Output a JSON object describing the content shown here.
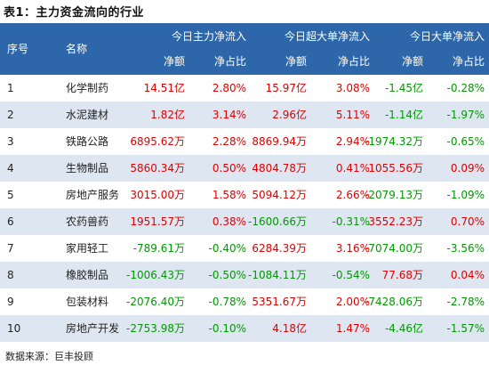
{
  "title": "表1：主力资金流向的行业",
  "header": {
    "col_index": "序号",
    "col_name": "名称",
    "group1": "今日主力净流入",
    "group2": "今日超大单净流入",
    "group3": "今日大单净流入",
    "sub_net": "净额",
    "sub_ratio": "净占比"
  },
  "rows": [
    {
      "idx": "1",
      "name": "化学制药",
      "v1": "14.51亿",
      "r1": "2.80%",
      "v2": "15.97亿",
      "r2": "3.08%",
      "v3": "-1.45亿",
      "r3": "-0.28%"
    },
    {
      "idx": "2",
      "name": "水泥建材",
      "v1": "1.82亿",
      "r1": "3.14%",
      "v2": "2.96亿",
      "r2": "5.11%",
      "v3": "-1.14亿",
      "r3": "-1.97%"
    },
    {
      "idx": "3",
      "name": "铁路公路",
      "v1": "6895.62万",
      "r1": "2.28%",
      "v2": "8869.94万",
      "r2": "2.94%",
      "v3": "-1974.32万",
      "r3": "-0.65%"
    },
    {
      "idx": "4",
      "name": "生物制品",
      "v1": "5860.34万",
      "r1": "0.50%",
      "v2": "4804.78万",
      "r2": "0.41%",
      "v3": "1055.56万",
      "r3": "0.09%"
    },
    {
      "idx": "5",
      "name": "房地产服务",
      "v1": "3015.00万",
      "r1": "1.58%",
      "v2": "5094.12万",
      "r2": "2.66%",
      "v3": "-2079.13万",
      "r3": "-1.09%"
    },
    {
      "idx": "6",
      "name": "农药兽药",
      "v1": "1951.57万",
      "r1": "0.38%",
      "v2": "-1600.66万",
      "r2": "-0.31%",
      "v3": "3552.23万",
      "r3": "0.70%"
    },
    {
      "idx": "7",
      "name": "家用轻工",
      "v1": "-789.61万",
      "r1": "-0.40%",
      "v2": "6284.39万",
      "r2": "3.16%",
      "v3": "-7074.00万",
      "r3": "-3.56%"
    },
    {
      "idx": "8",
      "name": "橡胶制品",
      "v1": "-1006.43万",
      "r1": "-0.50%",
      "v2": "-1084.11万",
      "r2": "-0.54%",
      "v3": "77.68万",
      "r3": "0.04%"
    },
    {
      "idx": "9",
      "name": "包装材料",
      "v1": "-2076.40万",
      "r1": "-0.78%",
      "v2": "5351.67万",
      "r2": "2.00%",
      "v3": "-7428.06万",
      "r3": "-2.78%"
    },
    {
      "idx": "10",
      "name": "房地产开发",
      "v1": "-2753.98万",
      "r1": "-0.10%",
      "v2": "4.18亿",
      "r2": "1.47%",
      "v3": "-4.46亿",
      "r3": "-1.57%"
    }
  ],
  "footer": "数据来源：巨丰投顾",
  "colors": {
    "header_bg": "#2e67a9",
    "alt_row_bg": "#dde6f1",
    "positive": "#e00000",
    "negative": "#009900"
  }
}
